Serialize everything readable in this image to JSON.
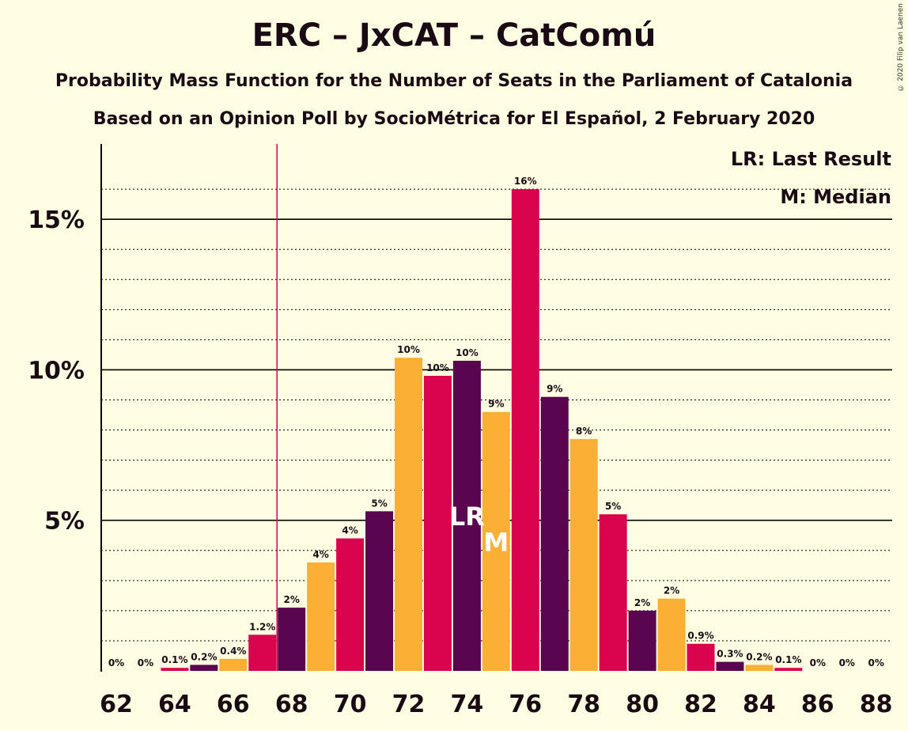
{
  "title": "ERC – JxCAT – CatComú",
  "subtitle": "Probability Mass Function for the Number of Seats in the Parliament of Catalonia",
  "subtitle2": "Based on an Opinion Poll by SocioMétrica for El Español, 2 February 2020",
  "copyright": "© 2020 Filip van Laenen",
  "legend": {
    "lr": "LR: Last Result",
    "m": "M: Median"
  },
  "markers": {
    "lr_text": "LR",
    "m_text": "M"
  },
  "colors": {
    "background": "#FFFEE3",
    "series": [
      "#5A0550",
      "#FBB035",
      "#D9044D"
    ],
    "last_result_line": "#D9044D"
  },
  "chart_data": {
    "type": "bar",
    "x": [
      62,
      63,
      64,
      65,
      66,
      67,
      68,
      69,
      70,
      71,
      72,
      73,
      74,
      75,
      76,
      77,
      78,
      79,
      80,
      81,
      82,
      83,
      84,
      85,
      86,
      87,
      88
    ],
    "values": [
      0,
      0,
      0.1,
      0.2,
      0.4,
      1.2,
      2.1,
      3.6,
      4.4,
      5.3,
      10.4,
      9.8,
      10.3,
      8.6,
      16.0,
      9.1,
      7.7,
      5.2,
      2.0,
      2.4,
      0.9,
      0.3,
      0.2,
      0.1,
      0,
      0,
      0
    ],
    "data_labels": [
      "0%",
      "0%",
      "0.1%",
      "0.2%",
      "0.4%",
      "1.2%",
      "2%",
      "4%",
      "4%",
      "5%",
      "10%",
      "10%",
      "10%",
      "9%",
      "16%",
      "9%",
      "8%",
      "5%",
      "2%",
      "2%",
      "0.9%",
      "0.3%",
      "0.2%",
      "0.1%",
      "0%",
      "0%",
      "0%"
    ],
    "x_tick_labels": [
      "62",
      "64",
      "66",
      "68",
      "70",
      "72",
      "74",
      "76",
      "78",
      "80",
      "82",
      "84",
      "86",
      "88"
    ],
    "y_tick_labels": [
      "5%",
      "10%",
      "15%"
    ],
    "y_ticks": [
      5,
      10,
      15
    ],
    "ylim": [
      0,
      17.5
    ],
    "last_result": 67.5,
    "last_result_bar": 74,
    "median": 75,
    "xlabel": "",
    "ylabel": ""
  }
}
